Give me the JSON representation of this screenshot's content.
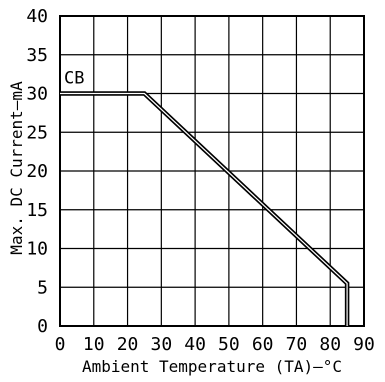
{
  "chart_data": {
    "type": "line",
    "xlabel": "Ambient Temperature (TA)–°C",
    "ylabel": "Max. DC Current–mA",
    "xlim": [
      0,
      90
    ],
    "ylim": [
      0,
      40
    ],
    "x_ticks": [
      0,
      10,
      20,
      30,
      40,
      50,
      60,
      70,
      80,
      90
    ],
    "y_ticks": [
      0,
      5,
      10,
      15,
      20,
      25,
      30,
      35,
      40
    ],
    "grid": true,
    "series": [
      {
        "name": "CB",
        "x": [
          0,
          25,
          85,
          85
        ],
        "y": [
          30,
          30,
          5.5,
          0
        ]
      }
    ],
    "colors": {
      "line": "#000000",
      "grid": "#000000",
      "background": "#ffffff"
    }
  }
}
